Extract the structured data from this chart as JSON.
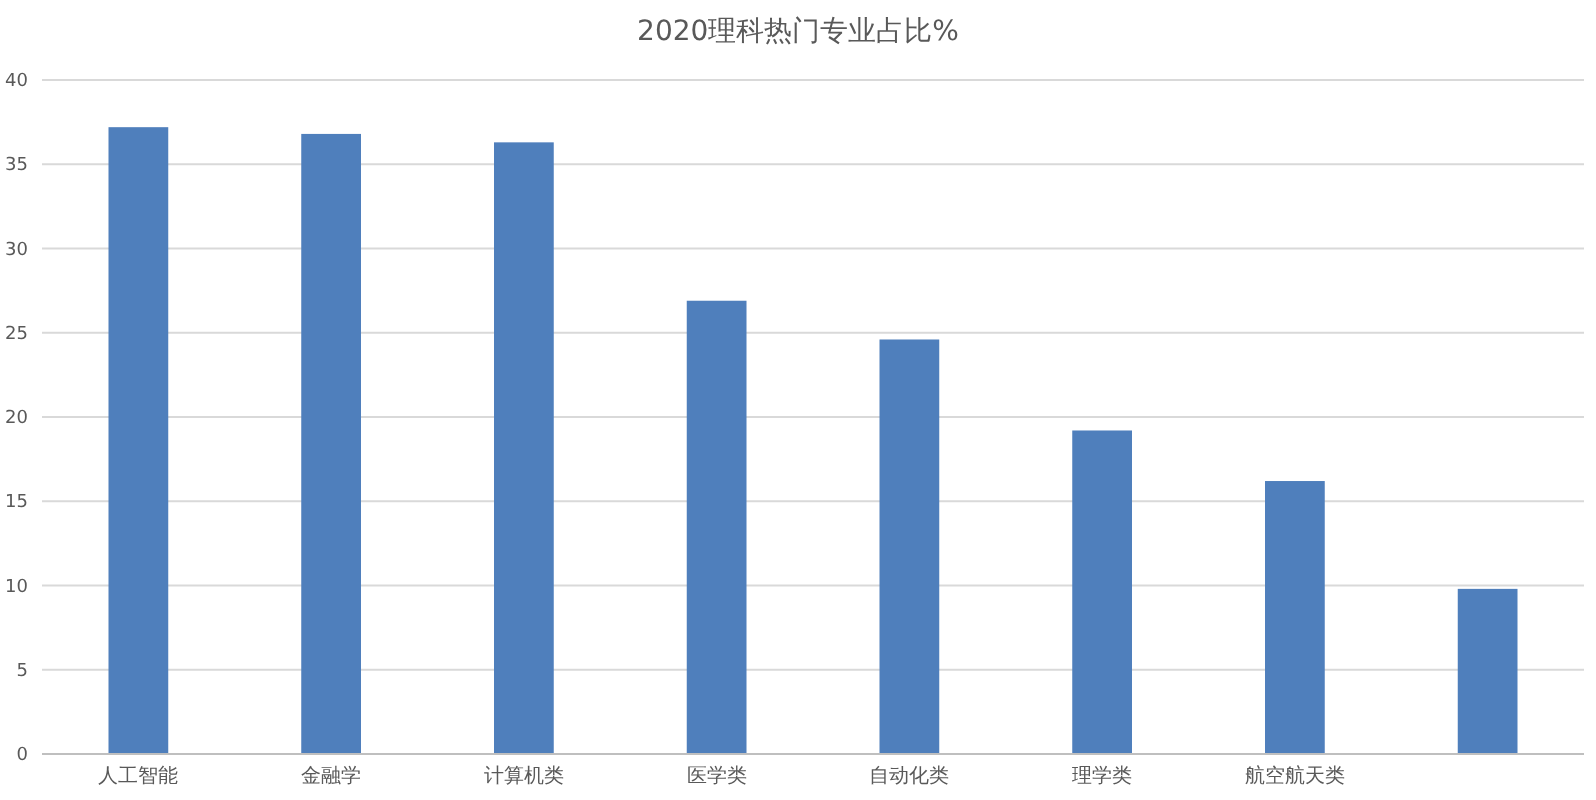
{
  "chart_data": {
    "type": "bar",
    "title": "2020理科热门专业占比%",
    "categories": [
      "人工智能",
      "金融学",
      "计算机类",
      "医学类",
      "自动化类",
      "理学类",
      "航空航天类",
      null
    ],
    "values": [
      37.2,
      36.8,
      36.3,
      26.9,
      24.6,
      19.2,
      16.2,
      9.8
    ],
    "color": "#4f7fbc",
    "ylim": [
      0,
      40
    ],
    "yticks": [
      0,
      5,
      10,
      15,
      20,
      25,
      30,
      35,
      40
    ],
    "grid": "y"
  }
}
